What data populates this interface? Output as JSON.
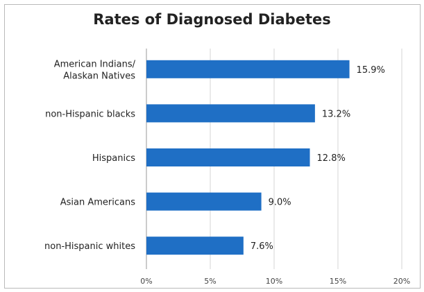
{
  "chart_data": {
    "type": "bar",
    "orientation": "horizontal",
    "title": "Rates of Diagnosed Diabetes",
    "categories": [
      "American Indians/\nAlaskan Natives",
      "non-Hispanic blacks",
      "Hispanics",
      "Asian Americans",
      "non-Hispanic whites"
    ],
    "values": [
      15.9,
      13.2,
      12.8,
      9.0,
      7.6
    ],
    "value_labels": [
      "15.9%",
      "13.2%",
      "12.8%",
      "9.0%",
      "7.6%"
    ],
    "xticks": [
      "0%",
      "5%",
      "10%",
      "15%",
      "20%"
    ],
    "xlim": [
      0,
      20
    ],
    "grid": "vertical",
    "bar_color": "#1f6fc5",
    "xlabel": "",
    "ylabel": ""
  }
}
